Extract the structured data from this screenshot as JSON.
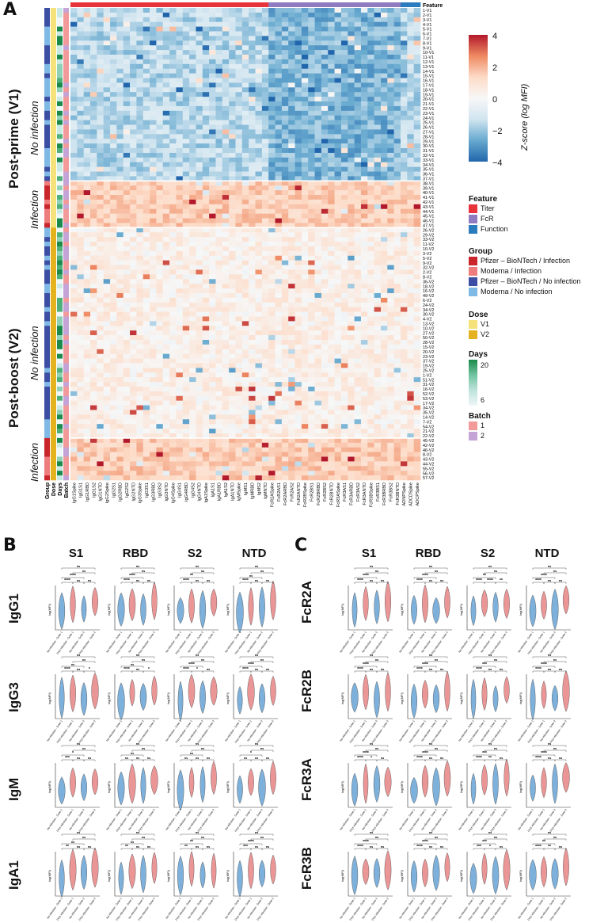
{
  "panels": {
    "a": "A",
    "b": "B",
    "c": "C"
  },
  "heatmap": {
    "feature_header": "Feature",
    "side_annotation_labels": [
      "Group",
      "Dose",
      "Days",
      "Batch"
    ],
    "section_labels": {
      "v1": "Post-prime (V1)",
      "v2": "Post-boost (V2)",
      "no_infection": "No infection",
      "infection": "Infection"
    },
    "columns": [
      "IgG1Spike",
      "IgG1S1",
      "IgG1RBD",
      "IgG1S2",
      "IgG1NTD",
      "IgG2Spike",
      "IgG2S1",
      "IgG2RBD",
      "IgG2S2",
      "IgG2NTD",
      "IgG3Spike",
      "IgG3S1",
      "IgG3RBD",
      "IgG3S2",
      "IgG3NTD",
      "IgG4Spike",
      "IgG4S1",
      "IgG4RBD",
      "IgG4S2",
      "IgG4NTD",
      "IgA1Spike",
      "IgA1S1",
      "IgA1RBD",
      "IgA1S2",
      "IgA1NTD",
      "IgMSpike",
      "IgMS1",
      "IgMRBD",
      "IgMS2",
      "IgMNTD",
      "FcR2ASpike",
      "FcR2AS1",
      "FcR2ARBD",
      "FcR2AS2",
      "FcR2ANTD",
      "FcR2BSpike",
      "FcR2BS1",
      "FcR2BRBD",
      "FcR2BS2",
      "FcR2BNTD",
      "FcR3ASpike",
      "FcR3AS1",
      "FcR3ARBD",
      "FcR3AS2",
      "FcR3ANTD",
      "FcR3BSpike",
      "FcR3BS1",
      "FcR3BRBD",
      "FcR3BS2",
      "FcR3BNTD",
      "ADNPSpike",
      "ADCDSpike",
      "ADCPSpike"
    ],
    "rows": [
      "1-V1",
      "2-V1",
      "3-V1",
      "4-V1",
      "5-V1",
      "6-V1",
      "7-V1",
      "8-V1",
      "9-V1",
      "10-V1",
      "11-V1",
      "12-V1",
      "13-V1",
      "14-V1",
      "15-V1",
      "16-V1",
      "17-V1",
      "18-V1",
      "19-V1",
      "20-V1",
      "21-V1",
      "22-V1",
      "23-V1",
      "24-V1",
      "25-V1",
      "26-V1",
      "27-V1",
      "28-V1",
      "29-V1",
      "30-V1",
      "31-V1",
      "32-V1",
      "33-V1",
      "34-V1",
      "35-V1",
      "36-V1",
      "37-V1",
      "38-V1",
      "39-V1",
      "40-V1",
      "41-V1",
      "42-V1",
      "43-V1",
      "44-V1",
      "45-V1",
      "46-V1",
      "47-V1",
      "26-V2",
      "29-V2",
      "33-V2",
      "11-V2",
      "10-V2",
      "3-V2",
      "5-V2",
      "9-V2",
      "32-V2",
      "2-V2",
      "8-V2",
      "36-V2",
      "18-V2",
      "16-V2",
      "49-V2",
      "6-V2",
      "24-V2",
      "34-V2",
      "30-V2",
      "4-V2",
      "13-V2",
      "10-V2",
      "27-V2",
      "50-V2",
      "28-V2",
      "15-V2",
      "20-V2",
      "23-V2",
      "37-V2",
      "19-V2",
      "25-V2",
      "1-V2",
      "51-V2",
      "31-V2",
      "16-V2",
      "52-V2",
      "53-V2",
      "17-V2",
      "34-V2",
      "35-V2",
      "14-V2",
      "7-V2",
      "54-V2",
      "21-V2",
      "22-V2",
      "45-V2",
      "42-V2",
      "46-V2",
      "8-V2",
      "43-V2",
      "44-V2",
      "55-V2",
      "56-V2",
      "57-V2"
    ],
    "legend": {
      "colorbar_label": "Z-score (log MFI)",
      "colorbar_ticks": [
        "4",
        "2",
        "0",
        "−2",
        "−4"
      ],
      "feature_title": "Feature",
      "feature_items": [
        {
          "label": "Titer",
          "color": "#e8333a"
        },
        {
          "label": "FcR",
          "color": "#8f7bc0"
        },
        {
          "label": "Function",
          "color": "#2b7bbf"
        }
      ],
      "group_title": "Group",
      "group_items": [
        {
          "label": "Pfizer – BioNTech / Infection",
          "color": "#c9252b"
        },
        {
          "label": "Moderna / Infection",
          "color": "#ee7c7c"
        },
        {
          "label": "Pfizer – BioNTech / No infection",
          "color": "#3b4ea3"
        },
        {
          "label": "Moderna / No infection",
          "color": "#7fb9e6"
        }
      ],
      "dose_title": "Dose",
      "dose_items": [
        {
          "label": "V1",
          "color": "#f6e27a"
        },
        {
          "label": "V2",
          "color": "#e5b21f"
        }
      ],
      "days_title": "Days",
      "days_ticks": [
        "20",
        "6"
      ],
      "batch_title": "Batch",
      "batch_items": [
        {
          "label": "1",
          "color": "#f29a9a"
        },
        {
          "label": "2",
          "color": "#c4a3d6"
        }
      ]
    }
  },
  "violin_panels": {
    "b": {
      "column_titles": [
        "S1",
        "RBD",
        "S2",
        "NTD"
      ],
      "row_titles": [
        "IgG1",
        "IgG3",
        "IgM",
        "IgA1"
      ]
    },
    "c": {
      "column_titles": [
        "S1",
        "RBD",
        "S2",
        "NTD"
      ],
      "row_titles": [
        "FcR2A",
        "FcR2B",
        "FcR3A",
        "FcR3B"
      ]
    },
    "ylabel": "log(MFI)",
    "xtick_labels": [
      "No infection - Dose 1",
      "Prior infection - Dose 1",
      "No infection - Dose 2",
      "Prior infection - Dose 2"
    ],
    "significance": {
      "IgG1": [
        [
          "****",
          "****",
          "ns",
          "ns",
          "ns",
          "ns"
        ],
        [
          "****",
          "****",
          "ns",
          "ns",
          "ns",
          "ns"
        ],
        [
          "****",
          "**",
          "ns",
          "ns",
          "ns",
          "ns"
        ],
        [
          "****",
          "ns",
          "ns",
          "ns",
          "ns",
          "ns"
        ]
      ],
      "IgG3": [
        [
          "****",
          "ns",
          "ns",
          "*",
          "ns",
          "ns"
        ],
        [
          "****",
          "ns",
          "ns",
          "*",
          "ns",
          "ns"
        ],
        [
          "****",
          "****",
          "*",
          "ns",
          "ns",
          "ns"
        ],
        [
          "****",
          "****",
          "ns",
          "ns",
          "ns",
          "ns"
        ]
      ],
      "IgM": [
        [
          "***",
          "*",
          "ns",
          "ns",
          "ns",
          "ns"
        ],
        [
          "ns",
          "ns",
          "ns",
          "ns",
          "ns",
          "ns"
        ],
        [
          "ns",
          "ns",
          "ns",
          "ns",
          "ns",
          "ns"
        ],
        [
          "ns",
          "*",
          "ns",
          "ns",
          "ns",
          "ns"
        ]
      ],
      "IgA1": [
        [
          "**",
          "ns",
          "ns",
          "ns",
          "ns",
          "ns"
        ],
        [
          "**",
          "ns",
          "ns",
          "ns",
          "ns",
          "ns"
        ],
        [
          "**",
          "**",
          "ns",
          "ns",
          "ns",
          "ns"
        ],
        [
          "***",
          "****",
          "ns",
          "ns",
          "ns",
          "ns"
        ]
      ],
      "FcR2A": [
        [
          "****",
          "****",
          "ns",
          "ns",
          "ns",
          "ns"
        ],
        [
          "****",
          "****",
          "ns",
          "ns",
          "ns",
          "ns"
        ],
        [
          "****",
          "**",
          "****",
          "**",
          "ns",
          "ns"
        ],
        [
          "****",
          "****",
          "ns",
          "ns",
          "ns",
          "ns"
        ]
      ],
      "FcR2B": [
        [
          "****",
          "****",
          "ns",
          "ns",
          "ns",
          "ns"
        ],
        [
          "****",
          "****",
          "ns",
          "ns",
          "ns",
          "ns"
        ],
        [
          "****",
          "***",
          "ns",
          "ns",
          "ns",
          "ns"
        ],
        [
          "****",
          "****",
          "ns",
          "ns",
          "ns",
          "ns"
        ]
      ],
      "FcR3A": [
        [
          "****",
          "****",
          "*",
          "ns",
          "ns",
          "ns"
        ],
        [
          "****",
          "****",
          "ns",
          "ns",
          "ns",
          "ns"
        ],
        [
          "****",
          "***",
          "**",
          "ns",
          "ns",
          "ns"
        ],
        [
          "****",
          "****",
          "ns",
          "ns",
          "ns",
          "ns"
        ]
      ],
      "FcR3B": [
        [
          "****",
          "****",
          "ns",
          "ns",
          "ns",
          "ns"
        ],
        [
          "****",
          "****",
          "ns",
          "ns",
          "ns",
          "ns"
        ],
        [
          "***",
          "***",
          "*",
          "ns",
          "ns",
          "ns"
        ],
        [
          "****",
          "**",
          "**",
          "ns",
          "ns",
          "ns"
        ]
      ]
    }
  }
}
